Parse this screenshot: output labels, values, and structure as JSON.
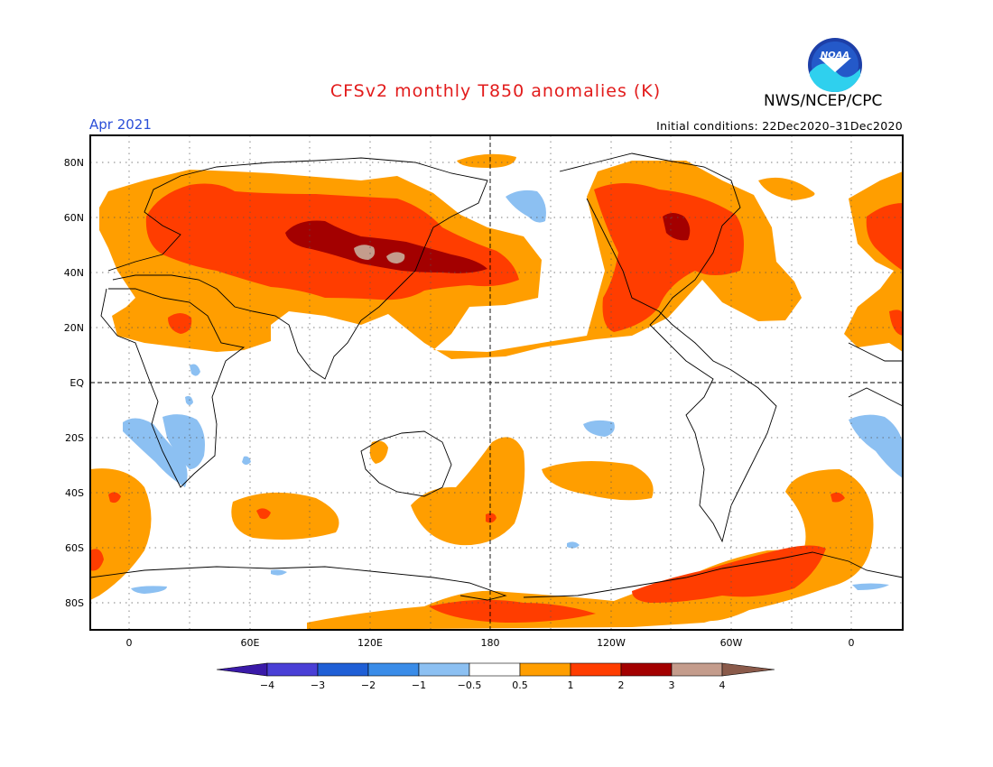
{
  "title": "CFSv2 monthly T850 anomalies (K)",
  "agency": "NWS/NCEP/CPC",
  "logo_text": "NOAA",
  "forecast_month": "Apr 2021",
  "initial_conditions": "Initial conditions: 22Dec2020–31Dec2020",
  "map": {
    "lat_labels": [
      "80N",
      "60N",
      "40N",
      "20N",
      "EQ",
      "20S",
      "40S",
      "60S",
      "80S"
    ],
    "lon_labels": [
      "0",
      "60E",
      "120E",
      "180",
      "120W",
      "60W",
      "0"
    ]
  },
  "colorbar": {
    "labels": [
      "−4",
      "−3",
      "−2",
      "−1",
      "−0.5",
      "0.5",
      "1",
      "2",
      "3",
      "4"
    ],
    "colors": [
      "#3a1aa8",
      "#4a3fd6",
      "#1f5fd6",
      "#3a8ce8",
      "#8cc0f2",
      "#ffffff",
      "#ff9e00",
      "#ff3d00",
      "#a30000",
      "#c49c8c",
      "#8a5a4a"
    ]
  }
}
